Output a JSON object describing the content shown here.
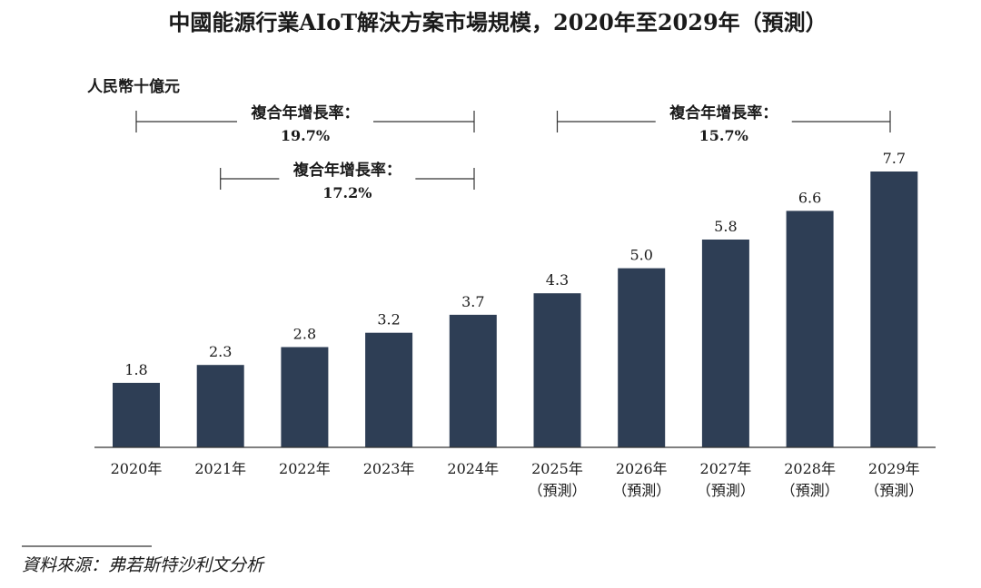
{
  "chart_data": {
    "type": "bar",
    "title": "中國能源行業AIoT解決方案市場規模，2020年至2029年（預測）",
    "ylabel": "人民幣十億元",
    "categories": [
      [
        "2020年",
        ""
      ],
      [
        "2021年",
        ""
      ],
      [
        "2022年",
        ""
      ],
      [
        "2023年",
        ""
      ],
      [
        "2024年",
        ""
      ],
      [
        "2025年",
        "（預測）"
      ],
      [
        "2026年",
        "（預測）"
      ],
      [
        "2027年",
        "（預測）"
      ],
      [
        "2028年",
        "（預測）"
      ],
      [
        "2029年",
        "（預測）"
      ]
    ],
    "values": [
      1.8,
      2.3,
      2.8,
      3.2,
      3.7,
      4.3,
      5.0,
      5.8,
      6.6,
      7.7
    ],
    "value_labels": [
      "1.8",
      "2.3",
      "2.8",
      "3.2",
      "3.7",
      "4.3",
      "5.0",
      "5.8",
      "6.6",
      "7.7"
    ],
    "ylim": [
      0,
      7.7
    ],
    "grid": false,
    "bar_color": "#2e3e55",
    "annotations": [
      {
        "label": "複合年增長率：",
        "value": "19.7%",
        "from": 0,
        "to": 4
      },
      {
        "label": "複合年增長率：",
        "value": "17.2%",
        "from": 1,
        "to": 4
      },
      {
        "label": "複合年增長率：",
        "value": "15.7%",
        "from": 5,
        "to": 9
      }
    ]
  },
  "source": "資料來源：弗若斯特沙利文分析"
}
